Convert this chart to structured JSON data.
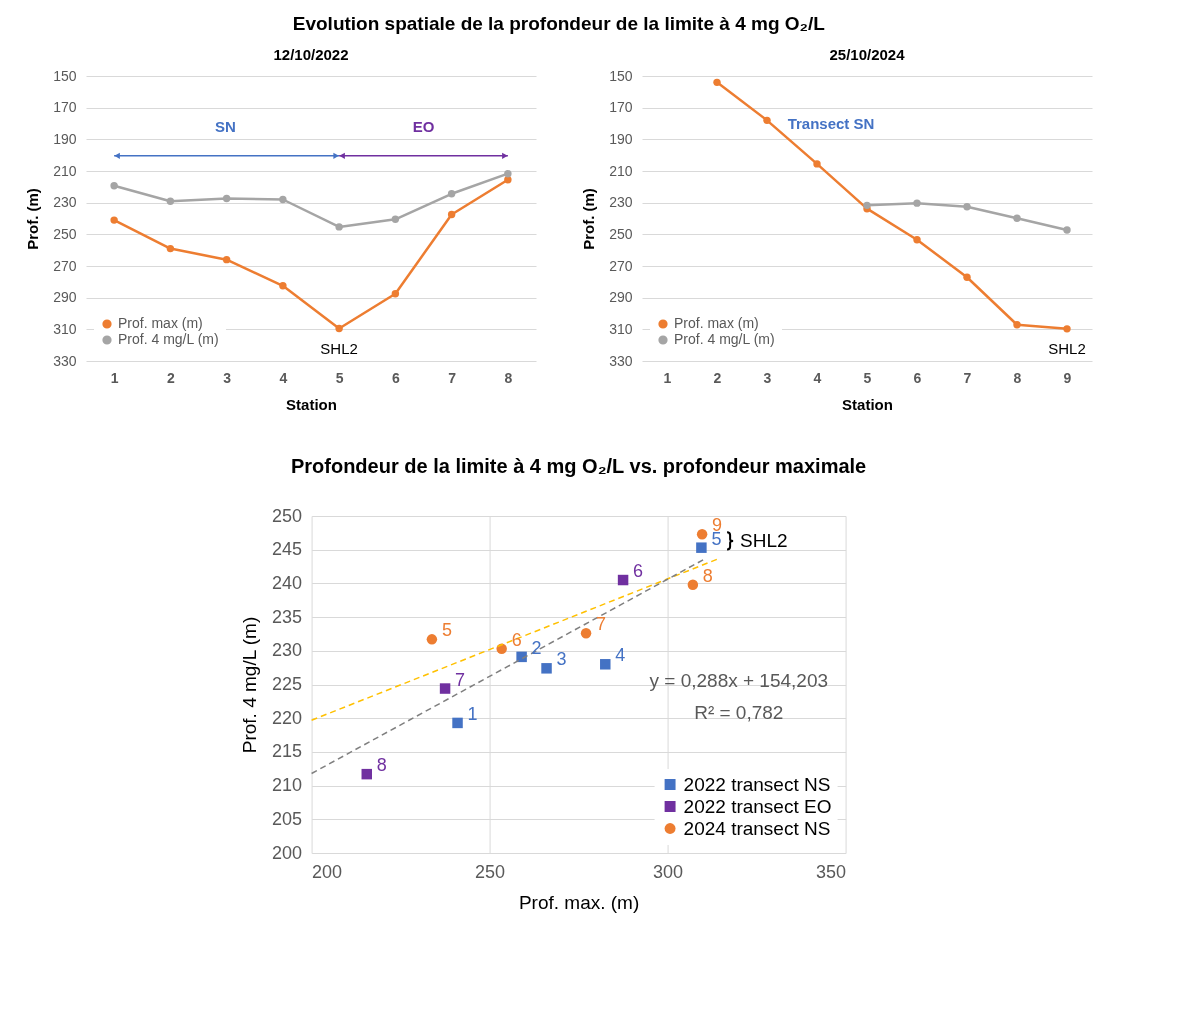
{
  "chart_data": [
    {
      "type": "line",
      "title": "Evolution spatiale de la profondeur de la limite à 4 mg O₂/L",
      "subtitle": "12/10/2022",
      "xlabel": "Station",
      "ylabel": "Prof. (m)",
      "x": [
        1,
        2,
        3,
        4,
        5,
        6,
        7,
        8
      ],
      "xlim": [
        0.5,
        8.5
      ],
      "xticks": [
        1,
        2,
        3,
        4,
        5,
        6,
        7,
        8
      ],
      "ylim": [
        330,
        150
      ],
      "yticks": [
        150,
        170,
        190,
        210,
        230,
        250,
        270,
        290,
        310,
        330
      ],
      "grid": "y",
      "legend": "bottom left",
      "marker": "circle",
      "series": [
        {
          "name": "Prof. max (m)",
          "color": "#ed7d31",
          "values": [
            241,
            259,
            266,
            282.5,
            309.5,
            287.5,
            237.5,
            215.5
          ]
        },
        {
          "name": "Prof. 4 mg/L (m)",
          "color": "#a5a5a5",
          "values": [
            219.3,
            229.1,
            227.4,
            228,
            245.3,
            240.5,
            224.4,
            211.7
          ]
        }
      ],
      "annotations": [
        "SN",
        "EO",
        {
          "text": "SHL2",
          "x": 5,
          "y": 309.5
        }
      ]
    },
    {
      "type": "line",
      "subtitle": "25/10/2024",
      "xlabel": "Station",
      "ylabel": "Prof. (m)",
      "x": [
        2,
        3,
        4,
        5,
        6,
        7,
        8,
        9
      ],
      "xlim": [
        0.5,
        9.5
      ],
      "xticks": [
        1,
        2,
        3,
        4,
        5,
        6,
        7,
        8,
        9
      ],
      "ylim": [
        330,
        150
      ],
      "yticks": [
        150,
        170,
        190,
        210,
        230,
        250,
        270,
        290,
        310,
        330
      ],
      "grid": "y",
      "legend": "bottom left",
      "marker": "circle",
      "series": [
        {
          "name": "Prof. max (m)",
          "color": "#ed7d31",
          "values": [
            154,
            178,
            205.5,
            233.8,
            253.4,
            277.1,
            307.1,
            309.7
          ]
        },
        {
          "name": "Prof. 4 mg/L (m)",
          "color": "#a5a5a5",
          "values": [
            null,
            null,
            null,
            231.7,
            230.3,
            232.6,
            239.8,
            247.3
          ]
        }
      ],
      "annotations": [
        "Transect SN",
        {
          "text": "SHL2",
          "x": 9,
          "y": 309.7
        }
      ]
    },
    {
      "type": "scatter",
      "title": "Profondeur de la limite à 4 mg O₂/L vs. profondeur maximale",
      "xlabel": "Prof. max. (m)",
      "ylabel": "Prof. 4 mg/L (m)",
      "xlim": [
        200,
        350
      ],
      "xticks": [
        200,
        250,
        300,
        350
      ],
      "ylim": [
        200,
        250
      ],
      "yticks": [
        200,
        205,
        210,
        215,
        220,
        225,
        230,
        235,
        240,
        245,
        250
      ],
      "grid": true,
      "legend": "bottom right",
      "series": [
        {
          "name": "2022 transect NS",
          "color": "#4472c4",
          "marker": "square",
          "x": [
            241,
            259,
            266,
            282.5,
            309.5
          ],
          "values": [
            219.3,
            229.1,
            227.4,
            228,
            245.3
          ]
        },
        {
          "name": "2022 transect EO",
          "color": "#7030a0",
          "marker": "square",
          "x": [
            287.5,
            237.5,
            215.5
          ],
          "values": [
            240.5,
            224.4,
            211.7
          ]
        },
        {
          "name": "2024 transect NS",
          "color": "#ed7d31",
          "marker": "circle",
          "x": [
            233.8,
            253.4,
            277.1,
            307.1,
            309.7
          ],
          "values": [
            231.7,
            230.3,
            232.6,
            239.8,
            247.3
          ]
        },
        {
          "type": "line",
          "color": "#ffc000",
          "line_style": "dashed",
          "x": [
            200,
            314
          ],
          "values": [
            219.7,
            243.6
          ]
        },
        {
          "type": "line",
          "color": "#7f7f7f",
          "line_style": "dashed",
          "x": [
            200,
            310
          ],
          "values": [
            211.8,
            243.5
          ]
        }
      ],
      "annotations": [
        {
          "text": "1",
          "x": 241,
          "y": 219.3
        },
        {
          "text": "2",
          "x": 259,
          "y": 229.1
        },
        {
          "text": "3",
          "x": 266,
          "y": 227.4
        },
        {
          "text": "4",
          "x": 282.5,
          "y": 228
        },
        {
          "text": "5",
          "x": 309.5,
          "y": 245.3
        },
        {
          "text": "6",
          "x": 287.5,
          "y": 240.5
        },
        {
          "text": "7",
          "x": 237.5,
          "y": 224.4
        },
        {
          "text": "8",
          "x": 215.5,
          "y": 211.7
        },
        {
          "text": "5",
          "x": 233.8,
          "y": 231.7
        },
        {
          "text": "6",
          "x": 253.4,
          "y": 230.3
        },
        {
          "text": "7",
          "x": 277.1,
          "y": 232.6
        },
        {
          "text": "8",
          "x": 307.1,
          "y": 239.8
        },
        {
          "text": "9",
          "x": 309.7,
          "y": 247.3
        },
        {
          "text": "SHL2",
          "x": 309.7,
          "y": 246.3
        },
        "y = 0,288x + 154,203",
        "R² = 0,782"
      ]
    }
  ]
}
